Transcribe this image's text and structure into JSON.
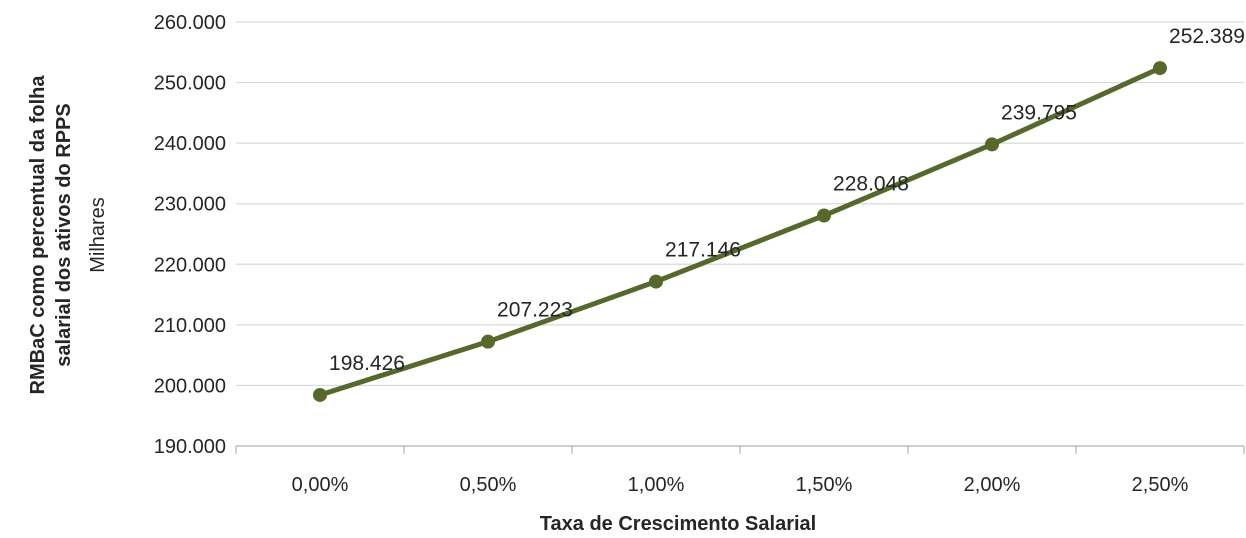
{
  "chart_data": {
    "type": "line",
    "categories": [
      "0,00%",
      "0,50%",
      "1,00%",
      "1,50%",
      "2,00%",
      "2,50%"
    ],
    "values": [
      198426,
      207223,
      217146,
      228048,
      239795,
      252389
    ],
    "data_labels": [
      "198.426",
      "207.223",
      "217.146",
      "228.048",
      "239.795",
      "252.389"
    ],
    "yticks": [
      190000,
      200000,
      210000,
      220000,
      230000,
      240000,
      250000,
      260000
    ],
    "ytick_labels": [
      "190.000",
      "200.000",
      "210.000",
      "220.000",
      "230.000",
      "240.000",
      "250.000",
      "260.000"
    ],
    "ylim": [
      190000,
      260000
    ],
    "xlabel": "Taxa de Crescimento Salarial",
    "ylabel_line1": "RMBaC como percentual da folha",
    "ylabel_line2": "salarial dos ativos do RPPS",
    "units_label": "Milhares",
    "grid": true,
    "line_color": "#56692a",
    "marker_color": "#56692a",
    "grid_color": "#d9d9d9"
  }
}
